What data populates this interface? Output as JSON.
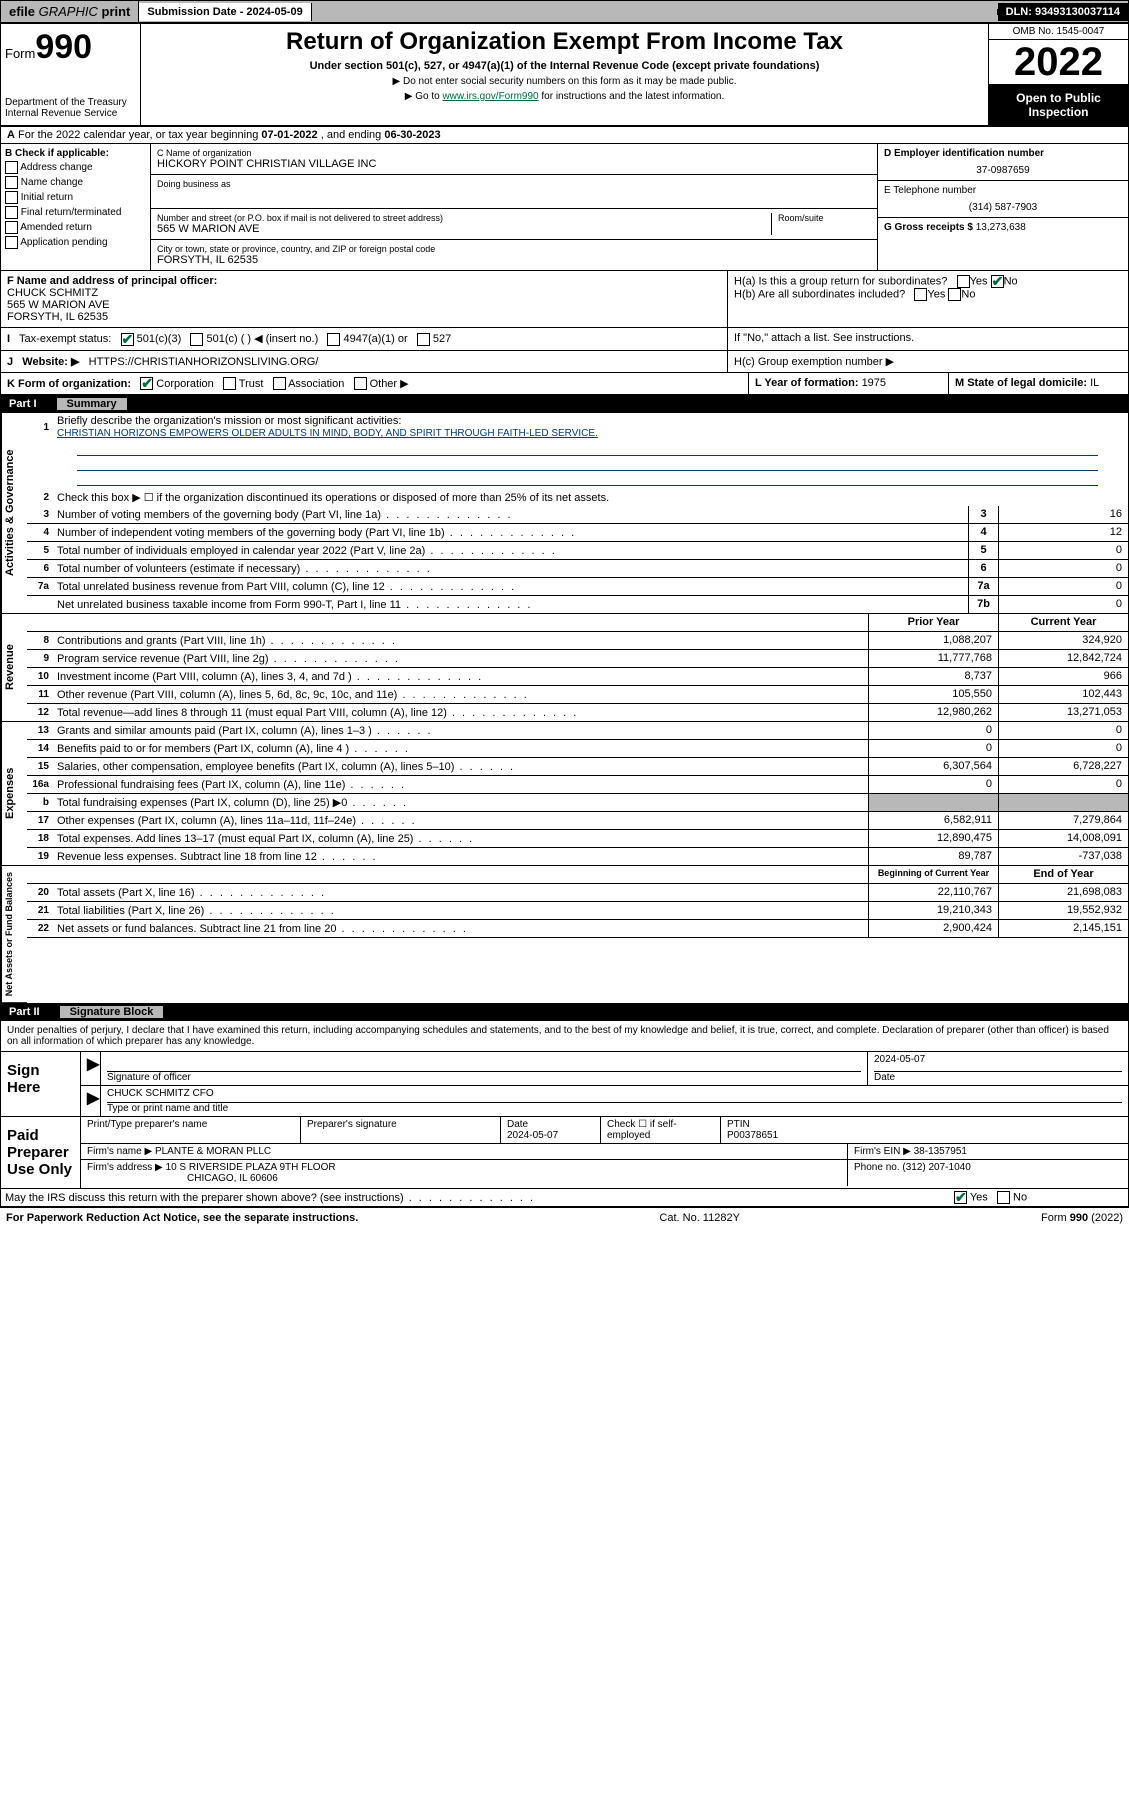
{
  "top": {
    "efile": "efile",
    "graphic": "GRAPHIC",
    "print": "print",
    "sub_label": "Submission Date - ",
    "sub_date": "2024-05-09",
    "dln": "DLN: 93493130037114"
  },
  "header": {
    "form_label": "Form",
    "form_no": "990",
    "dept": "Department of the Treasury Internal Revenue Service",
    "title": "Return of Organization Exempt From Income Tax",
    "subtitle": "Under section 501(c), 527, or 4947(a)(1) of the Internal Revenue Code (except private foundations)",
    "instr1": "▶ Do not enter social security numbers on this form as it may be made public.",
    "instr2_pre": "▶ Go to ",
    "instr2_link": "www.irs.gov/Form990",
    "instr2_post": " for instructions and the latest information.",
    "omb": "OMB No. 1545-0047",
    "year": "2022",
    "open": "Open to Public Inspection"
  },
  "A": {
    "text_pre": "For the 2022 calendar year, or tax year beginning ",
    "begin": "07-01-2022",
    "mid": " , and ending ",
    "end": "06-30-2023"
  },
  "B": {
    "label": "B Check if applicable:",
    "opts": [
      "Address change",
      "Name change",
      "Initial return",
      "Final return/terminated",
      "Amended return",
      "Application pending"
    ]
  },
  "C": {
    "name_lbl": "C Name of organization",
    "name": "HICKORY POINT CHRISTIAN VILLAGE INC",
    "dba_lbl": "Doing business as",
    "addr_lbl": "Number and street (or P.O. box if mail is not delivered to street address)",
    "room_lbl": "Room/suite",
    "addr": "565 W MARION AVE",
    "city_lbl": "City or town, state or province, country, and ZIP or foreign postal code",
    "city": "FORSYTH, IL  62535"
  },
  "D": {
    "lbl": "D Employer identification number",
    "val": "37-0987659"
  },
  "E": {
    "lbl": "E Telephone number",
    "val": "(314) 587-7903"
  },
  "G": {
    "lbl": "G Gross receipts $ ",
    "val": "13,273,638"
  },
  "F": {
    "lbl": "F Name and address of principal officer:",
    "name": "CHUCK SCHMITZ",
    "addr1": "565 W MARION AVE",
    "addr2": "FORSYTH, IL  62535"
  },
  "H": {
    "a": "H(a)  Is this a group return for subordinates?",
    "b": "H(b)  Are all subordinates included?",
    "b_note": "If \"No,\" attach a list. See instructions.",
    "c": "H(c)  Group exemption number ▶",
    "yes": "Yes",
    "no": "No"
  },
  "I": {
    "lbl": "Tax-exempt status:",
    "opts": [
      "501(c)(3)",
      "501(c) (  ) ◀ (insert no.)",
      "4947(a)(1) or",
      "527"
    ]
  },
  "J": {
    "lbl": "Website: ▶",
    "val": "HTTPS://CHRISTIANHORIZONSLIVING.ORG/"
  },
  "K": {
    "lbl": "K Form of organization:",
    "opts": [
      "Corporation",
      "Trust",
      "Association",
      "Other ▶"
    ]
  },
  "L": {
    "lbl": "L Year of formation: ",
    "val": "1975"
  },
  "M": {
    "lbl": "M State of legal domicile: ",
    "val": "IL"
  },
  "part1": {
    "num": "Part I",
    "title": "Summary"
  },
  "summary": {
    "line1_lbl": "Briefly describe the organization's mission or most significant activities:",
    "line1_val": "CHRISTIAN HORIZONS EMPOWERS OLDER ADULTS IN MIND, BODY, AND SPIRIT THROUGH FAITH-LED SERVICE.",
    "line2": "Check this box ▶ ☐  if the organization discontinued its operations or disposed of more than 25% of its net assets.",
    "gov": [
      {
        "n": "3",
        "t": "Number of voting members of the governing body (Part VI, line 1a)",
        "b": "3",
        "v": "16"
      },
      {
        "n": "4",
        "t": "Number of independent voting members of the governing body (Part VI, line 1b)",
        "b": "4",
        "v": "12"
      },
      {
        "n": "5",
        "t": "Total number of individuals employed in calendar year 2022 (Part V, line 2a)",
        "b": "5",
        "v": "0"
      },
      {
        "n": "6",
        "t": "Total number of volunteers (estimate if necessary)",
        "b": "6",
        "v": "0"
      },
      {
        "n": "7a",
        "t": "Total unrelated business revenue from Part VIII, column (C), line 12",
        "b": "7a",
        "v": "0"
      },
      {
        "n": "",
        "t": "Net unrelated business taxable income from Form 990-T, Part I, line 11",
        "b": "7b",
        "v": "0"
      }
    ],
    "py": "Prior Year",
    "cy": "Current Year",
    "rev": [
      {
        "n": "8",
        "t": "Contributions and grants (Part VIII, line 1h)",
        "p": "1,088,207",
        "c": "324,920"
      },
      {
        "n": "9",
        "t": "Program service revenue (Part VIII, line 2g)",
        "p": "11,777,768",
        "c": "12,842,724"
      },
      {
        "n": "10",
        "t": "Investment income (Part VIII, column (A), lines 3, 4, and 7d )",
        "p": "8,737",
        "c": "966"
      },
      {
        "n": "11",
        "t": "Other revenue (Part VIII, column (A), lines 5, 6d, 8c, 9c, 10c, and 11e)",
        "p": "105,550",
        "c": "102,443"
      },
      {
        "n": "12",
        "t": "Total revenue—add lines 8 through 11 (must equal Part VIII, column (A), line 12)",
        "p": "12,980,262",
        "c": "13,271,053"
      }
    ],
    "exp": [
      {
        "n": "13",
        "t": "Grants and similar amounts paid (Part IX, column (A), lines 1–3 )",
        "p": "0",
        "c": "0"
      },
      {
        "n": "14",
        "t": "Benefits paid to or for members (Part IX, column (A), line 4 )",
        "p": "0",
        "c": "0"
      },
      {
        "n": "15",
        "t": "Salaries, other compensation, employee benefits (Part IX, column (A), lines 5–10)",
        "p": "6,307,564",
        "c": "6,728,227"
      },
      {
        "n": "16a",
        "t": "Professional fundraising fees (Part IX, column (A), line 11e)",
        "p": "0",
        "c": "0"
      },
      {
        "n": "b",
        "t": "Total fundraising expenses (Part IX, column (D), line 25) ▶0",
        "p": "",
        "c": "",
        "shade": true
      },
      {
        "n": "17",
        "t": "Other expenses (Part IX, column (A), lines 11a–11d, 11f–24e)",
        "p": "6,582,911",
        "c": "7,279,864"
      },
      {
        "n": "18",
        "t": "Total expenses. Add lines 13–17 (must equal Part IX, column (A), line 25)",
        "p": "12,890,475",
        "c": "14,008,091"
      },
      {
        "n": "19",
        "t": "Revenue less expenses. Subtract line 18 from line 12",
        "p": "89,787",
        "c": "-737,038"
      }
    ],
    "by": "Beginning of Current Year",
    "ey": "End of Year",
    "net": [
      {
        "n": "20",
        "t": "Total assets (Part X, line 16)",
        "p": "22,110,767",
        "c": "21,698,083"
      },
      {
        "n": "21",
        "t": "Total liabilities (Part X, line 26)",
        "p": "19,210,343",
        "c": "19,552,932"
      },
      {
        "n": "22",
        "t": "Net assets or fund balances. Subtract line 21 from line 20",
        "p": "2,900,424",
        "c": "2,145,151"
      }
    ],
    "vtabs": {
      "gov": "Activities & Governance",
      "rev": "Revenue",
      "exp": "Expenses",
      "net": "Net Assets or Fund Balances"
    }
  },
  "part2": {
    "num": "Part II",
    "title": "Signature Block"
  },
  "penalty": "Under penalties of perjury, I declare that I have examined this return, including accompanying schedules and statements, and to the best of my knowledge and belief, it is true, correct, and complete. Declaration of preparer (other than officer) is based on all information of which preparer has any knowledge.",
  "sign": {
    "here": "Sign Here",
    "sig_date": "2024-05-07",
    "sig_lbl": "Signature of officer",
    "date_lbl": "Date",
    "name": "CHUCK SCHMITZ  CFO",
    "name_lbl": "Type or print name and title"
  },
  "paid": {
    "lbl": "Paid Preparer Use Only",
    "h1": "Print/Type preparer's name",
    "h2": "Preparer's signature",
    "h3": "Date",
    "h3v": "2024-05-07",
    "h4": "Check ☐ if self-employed",
    "h5": "PTIN",
    "h5v": "P00378651",
    "firm_lbl": "Firm's name    ▶ ",
    "firm": "PLANTE & MORAN PLLC",
    "ein_lbl": "Firm's EIN ▶ ",
    "ein": "38-1357951",
    "addr_lbl": "Firm's address ▶ ",
    "addr1": "10 S RIVERSIDE PLAZA 9TH FLOOR",
    "addr2": "CHICAGO, IL  60606",
    "phone_lbl": "Phone no. ",
    "phone": "(312) 207-1040"
  },
  "discuss": {
    "txt": "May the IRS discuss this return with the preparer shown above? (see instructions)",
    "yes": "Yes",
    "no": "No"
  },
  "footer": {
    "l": "For Paperwork Reduction Act Notice, see the separate instructions.",
    "m": "Cat. No. 11282Y",
    "r": "Form 990 (2022)"
  }
}
